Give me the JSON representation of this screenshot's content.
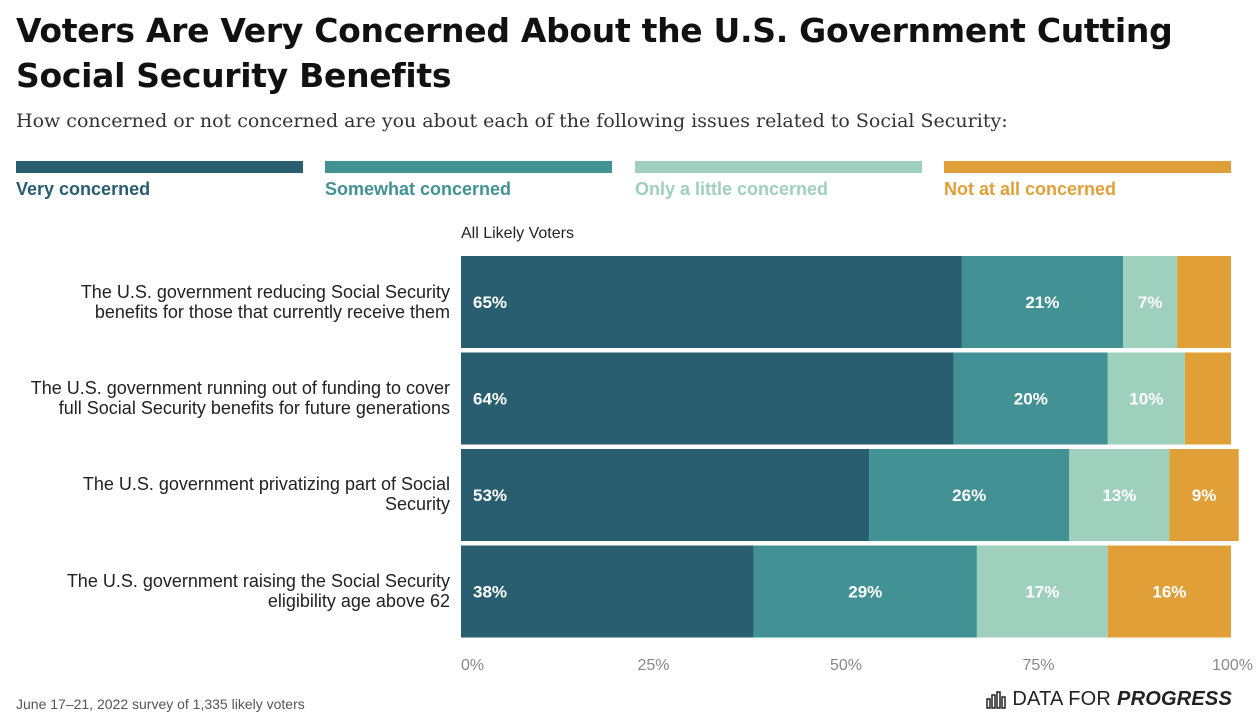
{
  "header": {
    "title": "Voters Are Very Concerned About the U.S. Government Cutting Social Security Benefits",
    "subtitle": "How concerned or not concerned are you about each of the following issues related to Social Security:"
  },
  "legend": [
    {
      "label": "Very concerned",
      "color": "#285e70"
    },
    {
      "label": "Somewhat concerned",
      "color": "#429194"
    },
    {
      "label": "Only a little concerned",
      "color": "#9ed0bd"
    },
    {
      "label": "Not at all concerned",
      "color": "#e1a037"
    }
  ],
  "group_label": "All Likely Voters",
  "chart_data": {
    "type": "bar",
    "orientation": "horizontal",
    "stacked": true,
    "title": "Voters Are Very Concerned About the U.S. Government Cutting Social Security Benefits",
    "categories": [
      "The U.S. government reducing Social Security benefits for those that currently receive them",
      "The U.S. government running out of funding to cover full Social Security benefits for future generations",
      "The U.S. government privatizing part of Social Security",
      "The U.S. government raising the Social Security eligibility age above 62"
    ],
    "series": [
      {
        "name": "Very concerned",
        "values": [
          65,
          64,
          53,
          38
        ],
        "color": "#285e70"
      },
      {
        "name": "Somewhat concerned",
        "values": [
          21,
          20,
          26,
          29
        ],
        "color": "#429194"
      },
      {
        "name": "Only a little concerned",
        "values": [
          7,
          10,
          13,
          17
        ],
        "color": "#9ed0bd"
      },
      {
        "name": "Not at all concerned",
        "values": [
          7,
          6,
          9,
          16
        ],
        "color": "#e1a037"
      }
    ],
    "value_labels": [
      [
        "65%",
        "21%",
        "7%",
        ""
      ],
      [
        "64%",
        "20%",
        "10%",
        ""
      ],
      [
        "53%",
        "26%",
        "13%",
        "9%"
      ],
      [
        "38%",
        "29%",
        "17%",
        "16%"
      ]
    ],
    "x_ticks": [
      "0%",
      "25%",
      "50%",
      "75%",
      "100%"
    ],
    "xlim": [
      0,
      100
    ],
    "grid": false,
    "legend_position": "top"
  },
  "footer": {
    "source": "June 17–21, 2022 survey of 1,335 likely voters",
    "logo_part1": "DATA FOR",
    "logo_part2": "PROGRESS"
  }
}
